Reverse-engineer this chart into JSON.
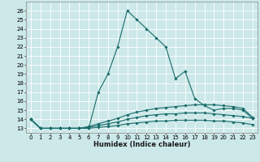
{
  "title": "",
  "xlabel": "Humidex (Indice chaleur)",
  "background_color": "#cce8e8",
  "grid_color": "#ffffff",
  "line_color": "#1a6b6b",
  "x_values": [
    0,
    1,
    2,
    3,
    4,
    5,
    6,
    7,
    8,
    9,
    10,
    11,
    12,
    13,
    14,
    15,
    16,
    17,
    18,
    19,
    20,
    21,
    22,
    23
  ],
  "series": [
    [
      14,
      13,
      13,
      13,
      13,
      13,
      13,
      17,
      19,
      22,
      26,
      25,
      24,
      23,
      22,
      18.5,
      19.3,
      16.3,
      15.5,
      15,
      15.2,
      15.2,
      15,
      14.1
    ],
    [
      14,
      13,
      13,
      13,
      13,
      13,
      13.2,
      13.5,
      13.8,
      14.1,
      14.5,
      14.8,
      15,
      15.2,
      15.3,
      15.4,
      15.5,
      15.6,
      15.6,
      15.6,
      15.5,
      15.4,
      15.2,
      14.2
    ],
    [
      14,
      13,
      13,
      13,
      13,
      13,
      13.1,
      13.3,
      13.5,
      13.7,
      14.0,
      14.2,
      14.4,
      14.5,
      14.6,
      14.6,
      14.7,
      14.7,
      14.7,
      14.6,
      14.5,
      14.4,
      14.3,
      14.1
    ],
    [
      14,
      13,
      13,
      13,
      13,
      13,
      13.0,
      13.1,
      13.2,
      13.3,
      13.5,
      13.6,
      13.7,
      13.8,
      13.8,
      13.9,
      13.9,
      13.9,
      13.9,
      13.8,
      13.8,
      13.7,
      13.6,
      13.4
    ]
  ],
  "ylim": [
    12.5,
    27
  ],
  "xlim": [
    -0.5,
    23.5
  ],
  "yticks": [
    13,
    14,
    15,
    16,
    17,
    18,
    19,
    20,
    21,
    22,
    23,
    24,
    25,
    26
  ],
  "xticks": [
    0,
    1,
    2,
    3,
    4,
    5,
    6,
    7,
    8,
    9,
    10,
    11,
    12,
    13,
    14,
    15,
    16,
    17,
    18,
    19,
    20,
    21,
    22,
    23
  ],
  "marker": "D",
  "marker_size": 1.8,
  "line_width": 0.8,
  "axis_fontsize": 6.0,
  "tick_fontsize": 5.0
}
